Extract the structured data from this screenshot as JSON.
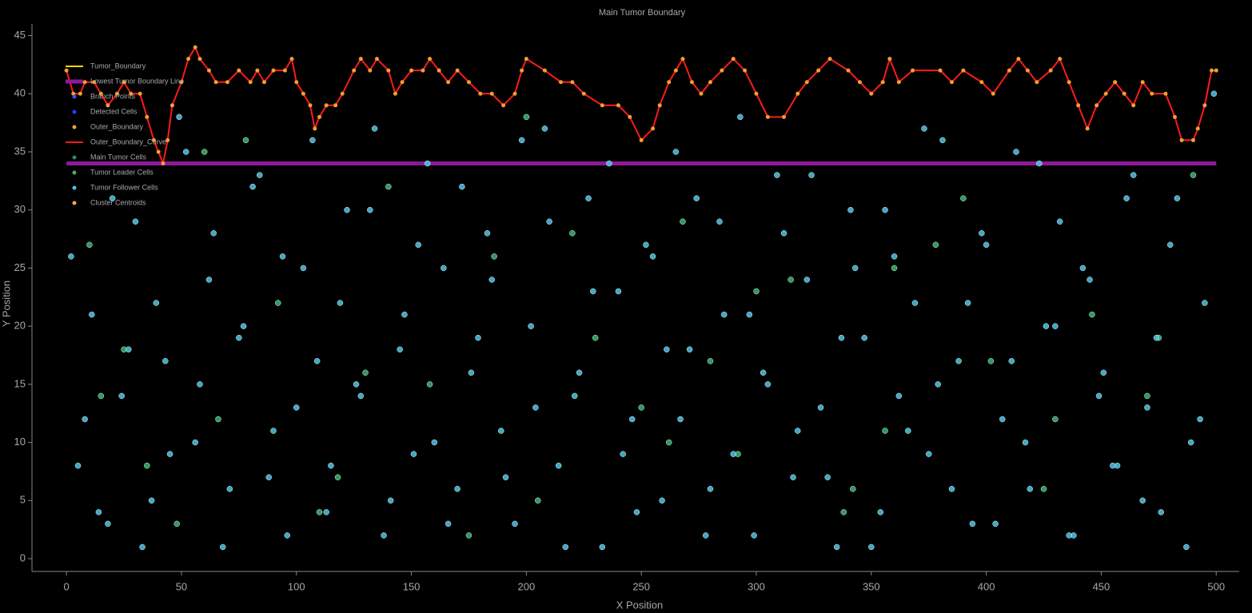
{
  "chart_data": {
    "type": "scatter",
    "title": "Main Tumor Boundary",
    "x_label": "X Position",
    "y_label": "Y Position",
    "xlim": [
      -15,
      510
    ],
    "ylim": [
      -1.1,
      46
    ],
    "xticks": [
      0,
      50,
      100,
      150,
      200,
      250,
      300,
      350,
      400,
      450,
      500
    ],
    "yticks": [
      0,
      5,
      10,
      15,
      20,
      25,
      30,
      35,
      40,
      45
    ],
    "legend": "upper left",
    "series": [
      {
        "name": "Tumor_Boundary",
        "style": "line",
        "color": "#ffd700",
        "x": [],
        "y": []
      },
      {
        "name": "Lowest Tumor Boundary Line",
        "style": "line",
        "color": "#8b1a9a",
        "x": [
          0,
          500
        ],
        "y": [
          34,
          34
        ]
      },
      {
        "name": "Branch Points",
        "style": "dot",
        "color": "#3a4dff",
        "x": [],
        "y": []
      },
      {
        "name": "Detected Cells",
        "style": "dot",
        "color": "#2a3cff",
        "x": [],
        "y": []
      },
      {
        "name": "Outer_Boundary",
        "style": "dot",
        "color": "#f0a030",
        "x": [],
        "y": []
      },
      {
        "name": "Outer_Boundary_Curve",
        "style": "line",
        "color": "#ff1a1a",
        "marker_color": "#f0a030",
        "x": [
          0,
          3,
          6,
          8,
          12,
          15,
          18,
          22,
          25,
          28,
          32,
          35,
          38,
          40,
          42,
          44,
          46,
          50,
          53,
          56,
          58,
          62,
          65,
          70,
          75,
          80,
          83,
          86,
          90,
          95,
          98,
          100,
          103,
          106,
          108,
          110,
          113,
          117,
          120,
          125,
          128,
          132,
          135,
          140,
          143,
          146,
          150,
          155,
          158,
          162,
          166,
          170,
          175,
          180,
          185,
          190,
          195,
          198,
          200,
          208,
          215,
          220,
          225,
          233,
          240,
          245,
          250,
          255,
          258,
          262,
          265,
          268,
          272,
          276,
          280,
          285,
          290,
          295,
          300,
          305,
          312,
          318,
          322,
          327,
          332,
          340,
          345,
          350,
          355,
          358,
          362,
          368,
          380,
          385,
          390,
          398,
          403,
          410,
          414,
          418,
          422,
          428,
          432,
          436,
          440,
          444,
          448,
          452,
          456,
          460,
          464,
          468,
          472,
          478,
          482,
          485,
          490,
          492,
          495,
          498,
          500
        ],
        "y": [
          42,
          40,
          40,
          41,
          41,
          40,
          39,
          40,
          41,
          40,
          40,
          38,
          36,
          35,
          34,
          36,
          39,
          41,
          43,
          44,
          43,
          42,
          41,
          41,
          42,
          41,
          42,
          41,
          42,
          42,
          43,
          41,
          40,
          39,
          37,
          38,
          39,
          39,
          40,
          42,
          43,
          42,
          43,
          42,
          40,
          41,
          42,
          42,
          43,
          42,
          41,
          42,
          41,
          40,
          40,
          39,
          40,
          42,
          43,
          42,
          41,
          41,
          40,
          39,
          39,
          38,
          36,
          37,
          39,
          41,
          42,
          43,
          41,
          40,
          41,
          42,
          43,
          42,
          40,
          38,
          38,
          40,
          41,
          42,
          43,
          42,
          41,
          40,
          41,
          43,
          41,
          42,
          42,
          41,
          42,
          41,
          40,
          42,
          43,
          42,
          41,
          42,
          43,
          41,
          39,
          37,
          39,
          40,
          41,
          40,
          39,
          41,
          40,
          40,
          38,
          36,
          36,
          37,
          39,
          42,
          42
        ]
      },
      {
        "name": "Main Tumor Cells",
        "style": "dot",
        "color": "#2e8b57",
        "x": [],
        "y": []
      },
      {
        "name": "Tumor Leader Cells",
        "style": "dot",
        "color": "#3cb371",
        "x": [
          10,
          25,
          48,
          66,
          92,
          118,
          140,
          158,
          186,
          205,
          230,
          250,
          268,
          292,
          315,
          338,
          356,
          378,
          402,
          425,
          446,
          470,
          490,
          35,
          78,
          130,
          175,
          220,
          262,
          300,
          342,
          390,
          430,
          475,
          15,
          60,
          110,
          200,
          280,
          360
        ],
        "y": [
          27,
          18,
          3,
          12,
          22,
          7,
          32,
          15,
          26,
          5,
          19,
          13,
          29,
          9,
          24,
          4,
          11,
          27,
          17,
          6,
          21,
          14,
          33,
          8,
          36,
          16,
          2,
          28,
          10,
          23,
          6,
          31,
          12,
          19,
          14,
          35,
          4,
          38,
          17,
          25
        ]
      },
      {
        "name": "Tumor Follower Cells",
        "style": "dot",
        "color": "#4fc3e8",
        "x": [
          2,
          8,
          14,
          20,
          27,
          33,
          39,
          45,
          52,
          58,
          64,
          71,
          77,
          84,
          90,
          96,
          103,
          109,
          115,
          122,
          128,
          134,
          141,
          147,
          153,
          160,
          166,
          172,
          179,
          185,
          191,
          198,
          204,
          210,
          217,
          223,
          229,
          236,
          242,
          248,
          255,
          261,
          267,
          274,
          280,
          286,
          293,
          299,
          305,
          312,
          318,
          324,
          331,
          337,
          343,
          350,
          356,
          362,
          369,
          375,
          381,
          388,
          394,
          400,
          407,
          413,
          419,
          426,
          432,
          438,
          445,
          451,
          457,
          464,
          470,
          476,
          483,
          489,
          495,
          499,
          5,
          11,
          18,
          24,
          30,
          37,
          43,
          49,
          56,
          62,
          68,
          75,
          81,
          88,
          94,
          100,
          107,
          113,
          119,
          126,
          132,
          138,
          145,
          151,
          157,
          164,
          170,
          176,
          183,
          189,
          195,
          202,
          208,
          214,
          221,
          227,
          233,
          240,
          246,
          252,
          259,
          265,
          271,
          278,
          284,
          290,
          297,
          303,
          309,
          316,
          322,
          328,
          335,
          341,
          347,
          354,
          360,
          366,
          373,
          379,
          385,
          392,
          398,
          404,
          411,
          417,
          423,
          430,
          436,
          442,
          449,
          455,
          461,
          468,
          474,
          480,
          487,
          493
        ],
        "y": [
          26,
          12,
          4,
          31,
          18,
          1,
          22,
          9,
          35,
          15,
          28,
          6,
          20,
          33,
          11,
          2,
          25,
          17,
          8,
          30,
          14,
          37,
          5,
          21,
          27,
          10,
          3,
          32,
          19,
          24,
          7,
          36,
          13,
          29,
          1,
          16,
          23,
          34,
          9,
          4,
          26,
          18,
          12,
          31,
          6,
          21,
          38,
          2,
          15,
          28,
          11,
          33,
          7,
          19,
          25,
          1,
          30,
          14,
          22,
          9,
          36,
          17,
          3,
          27,
          12,
          35,
          6,
          20,
          29,
          2,
          24,
          16,
          8,
          33,
          13,
          4,
          31,
          10,
          22,
          40,
          8,
          21,
          3,
          14,
          29,
          5,
          17,
          38,
          10,
          24,
          1,
          19,
          32,
          7,
          26,
          13,
          36,
          4,
          22,
          15,
          30,
          2,
          18,
          9,
          34,
          25,
          6,
          16,
          28,
          11,
          3,
          20,
          37,
          8,
          14,
          31,
          1,
          23,
          12,
          27,
          5,
          35,
          18,
          2,
          29,
          9,
          21,
          16,
          33,
          7,
          24,
          13,
          1,
          30,
          19,
          4,
          26,
          11,
          37,
          15,
          6,
          22,
          28,
          3,
          17,
          10,
          34,
          20,
          2,
          25,
          14,
          8,
          31,
          5,
          19,
          27,
          1,
          12
        ]
      },
      {
        "name": "Cluster Centroids",
        "style": "dot",
        "color": "#f4a460",
        "x": [],
        "y": []
      }
    ]
  }
}
